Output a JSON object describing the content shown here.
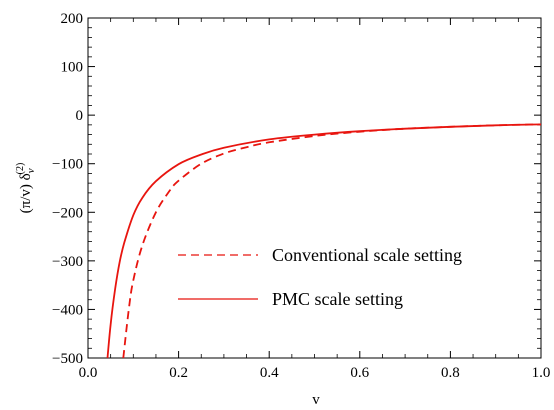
{
  "chart_data": {
    "type": "line",
    "title": "",
    "xlabel": "v",
    "ylabel": "(π/v) δ",
    "ylabel_sup": "(2)",
    "ylabel_sub": "v",
    "xlim": [
      0.0,
      1.0
    ],
    "ylim": [
      -500,
      200
    ],
    "xticks": [
      0.0,
      0.2,
      0.4,
      0.6,
      0.8,
      1.0
    ],
    "xtick_labels": [
      "0.0",
      "0.2",
      "0.4",
      "0.6",
      "0.8",
      "1.0"
    ],
    "yticks": [
      200,
      100,
      0,
      -100,
      -200,
      -300,
      -400,
      -500
    ],
    "ytick_labels": [
      "200",
      "100",
      "0",
      "−100",
      "−200",
      "−300",
      "−400",
      "−500"
    ],
    "grid": false,
    "legend_position": "center-right",
    "series": [
      {
        "name": "Conventional scale setting",
        "style": "dashed",
        "color": "#e8150f",
        "x": [
          0.078,
          0.09,
          0.1,
          0.12,
          0.15,
          0.18,
          0.2,
          0.25,
          0.3,
          0.35,
          0.4,
          0.5,
          0.6,
          0.7,
          0.8,
          0.9,
          1.0
        ],
        "y": [
          -500,
          -400,
          -340,
          -268,
          -200,
          -156,
          -135,
          -100,
          -79,
          -66,
          -56,
          -43,
          -34,
          -28,
          -24,
          -21,
          -19
        ]
      },
      {
        "name": "PMC scale setting",
        "style": "solid",
        "color": "#e8150f",
        "x": [
          0.043,
          0.05,
          0.06,
          0.07,
          0.08,
          0.1,
          0.12,
          0.15,
          0.2,
          0.25,
          0.3,
          0.4,
          0.5,
          0.6,
          0.7,
          0.8,
          0.9,
          1.0
        ],
        "y": [
          -500,
          -430,
          -357,
          -302,
          -263,
          -206,
          -170,
          -136,
          -101,
          -81,
          -67,
          -50,
          -40,
          -33,
          -28,
          -24,
          -21,
          -19
        ]
      }
    ]
  }
}
